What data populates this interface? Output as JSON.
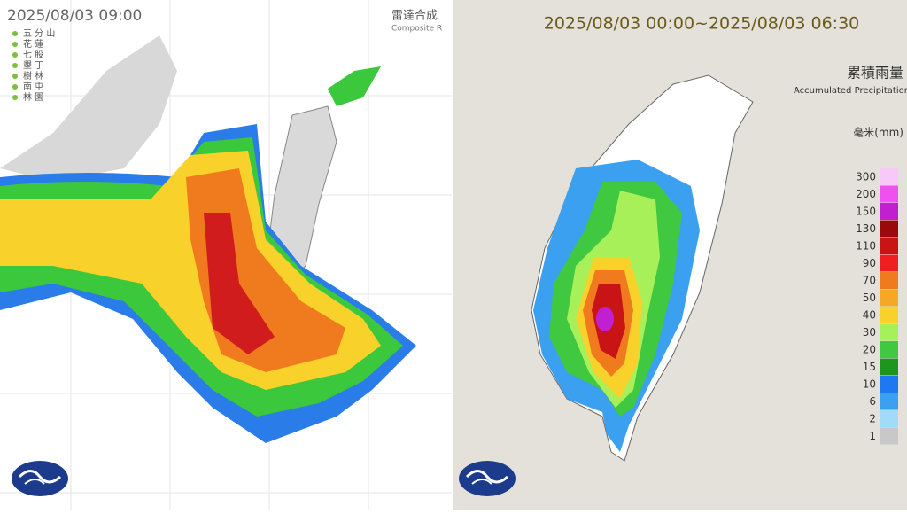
{
  "left_panel": {
    "timestamp": "2025/08/03 09:00",
    "title": "雷達合成",
    "subtitle": "Composite R",
    "stations": [
      "五 分 山",
      "花 蓮",
      "七 股",
      "墾 丁",
      "樹 林",
      "南 屯",
      "林 園"
    ]
  },
  "right_panel": {
    "period": "2025/08/03 00:00~2025/08/03 06:30",
    "title": "累積雨量",
    "subtitle": "Accumulated Precipitation",
    "unit": "毫米(mm)",
    "legend": [
      {
        "label": 300,
        "color": "#f8c8f8"
      },
      {
        "label": 200,
        "color": "#f050f0"
      },
      {
        "label": 150,
        "color": "#c020d0"
      },
      {
        "label": 130,
        "color": "#9a0a0a"
      },
      {
        "label": 110,
        "color": "#c81414"
      },
      {
        "label": 90,
        "color": "#f01e1e"
      },
      {
        "label": 70,
        "color": "#f07a1e"
      },
      {
        "label": 50,
        "color": "#f5a823"
      },
      {
        "label": 40,
        "color": "#f8d22a"
      },
      {
        "label": 30,
        "color": "#a8f05a"
      },
      {
        "label": 20,
        "color": "#40c840"
      },
      {
        "label": 15,
        "color": "#1e961e"
      },
      {
        "label": 10,
        "color": "#1e78f0"
      },
      {
        "label": 6,
        "color": "#3ca0f0"
      },
      {
        "label": 2,
        "color": "#a0dcf8"
      },
      {
        "label": 1,
        "color": "#c8c8c8"
      }
    ]
  }
}
